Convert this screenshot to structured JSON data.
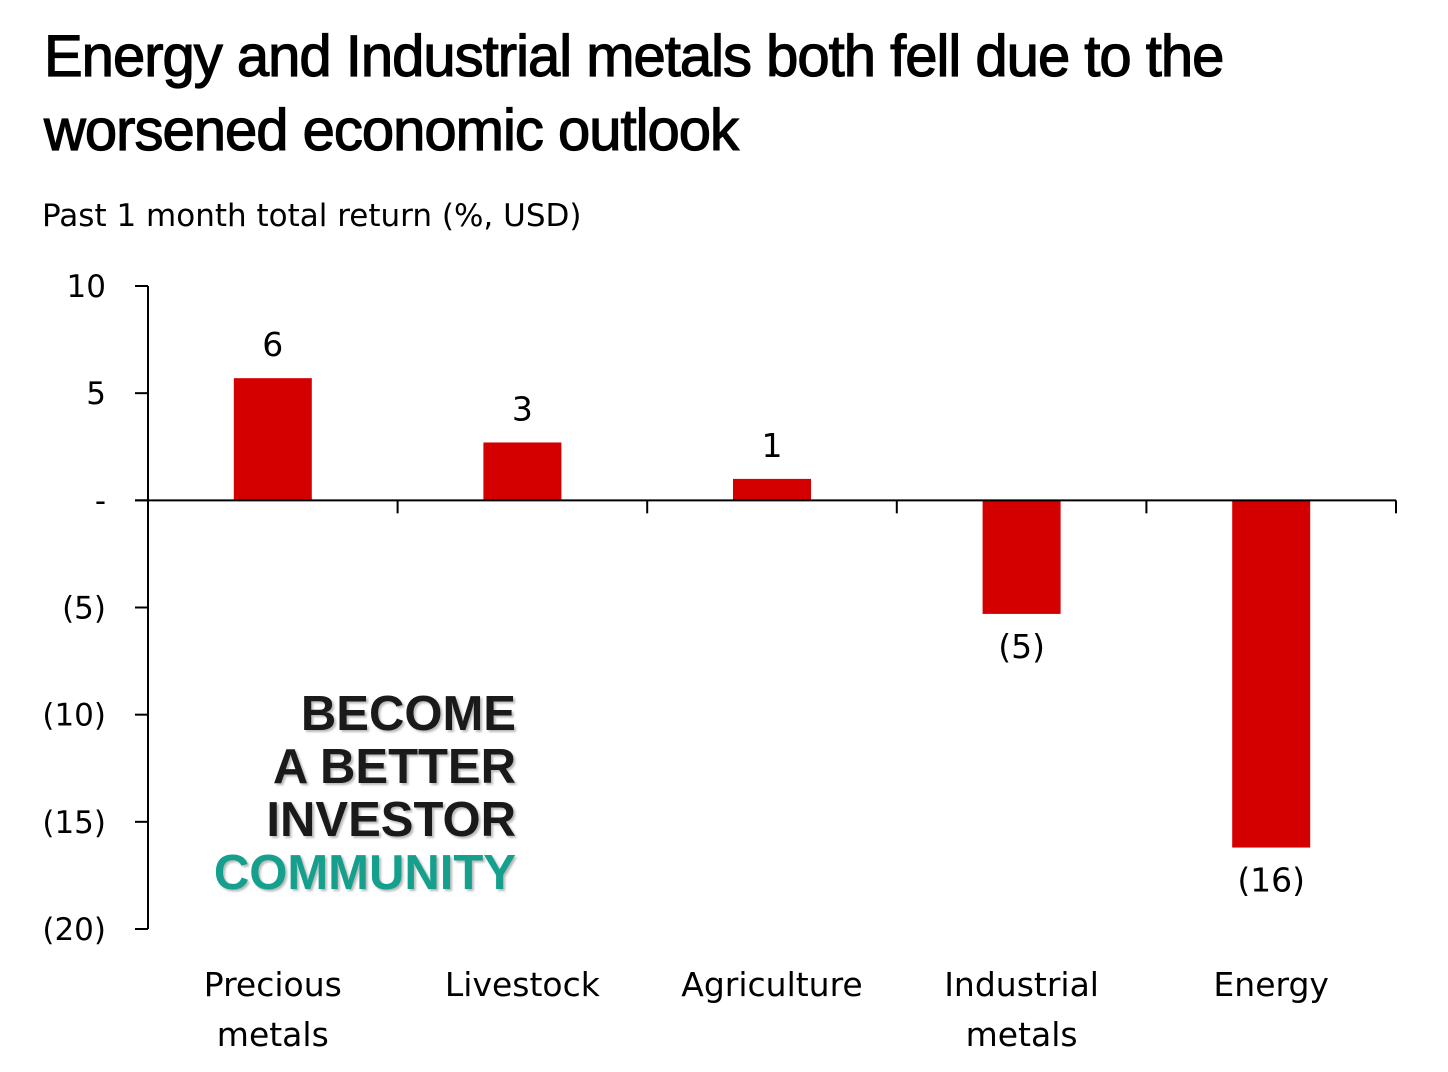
{
  "chart_data": {
    "type": "bar",
    "title": "Energy and Industrial metals both fell due to the worsened economic outlook",
    "subtitle": "Past 1 month total return (%, USD)",
    "categories": [
      [
        "Precious",
        "metals"
      ],
      [
        "Livestock"
      ],
      [
        "Agriculture"
      ],
      [
        "Industrial",
        "metals"
      ],
      [
        "Energy"
      ]
    ],
    "values": [
      5.7,
      2.7,
      1.0,
      -5.3,
      -16.2
    ],
    "data_labels": [
      "6",
      "3",
      "1",
      "(5)",
      "(16)"
    ],
    "ylim": [
      -20,
      10
    ],
    "yticks": [
      10,
      5,
      0,
      -5,
      -10,
      -15,
      -20
    ],
    "ytick_labels": [
      "10",
      "5",
      "-",
      "(5)",
      "(10)",
      "(15)",
      "(20)"
    ],
    "grid": false,
    "legend": "none",
    "bar_color": "#d40000"
  },
  "watermark": {
    "lines": [
      "BECOME",
      "A BETTER",
      "INVESTOR",
      "COMMUNITY"
    ],
    "colors": [
      "#1a1a1a",
      "#1a1a1a",
      "#1a1a1a",
      "#14a08c"
    ]
  }
}
